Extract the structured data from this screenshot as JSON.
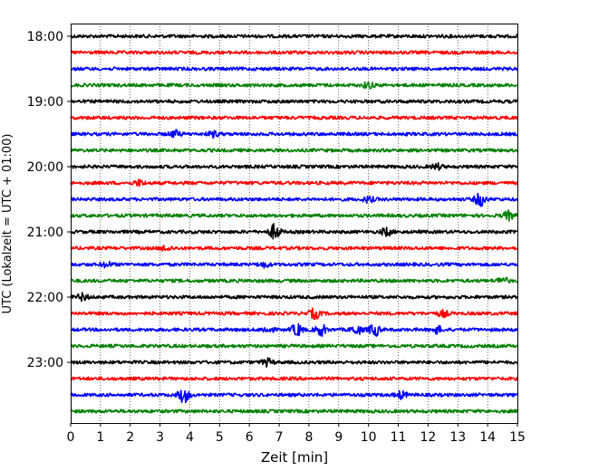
{
  "chart_data": {
    "type": "line",
    "title": "",
    "xlabel": "Zeit  [min]",
    "ylabel": "UTC (Lokalzeit = UTC + 01:00)",
    "xlim": [
      0,
      15
    ],
    "x_ticks": [
      "0",
      "1",
      "2",
      "3",
      "4",
      "5",
      "6",
      "7",
      "8",
      "9",
      "10",
      "11",
      "12",
      "13",
      "14",
      "15"
    ],
    "y_ticks": [
      {
        "label": "18:00",
        "row": 0
      },
      {
        "label": "19:00",
        "row": 4
      },
      {
        "label": "20:00",
        "row": 8
      },
      {
        "label": "21:00",
        "row": 12
      },
      {
        "label": "22:00",
        "row": 16
      },
      {
        "label": "23:00",
        "row": 20
      }
    ],
    "grid": {
      "vertical": true,
      "style": "dotted"
    },
    "colors": [
      "#000000",
      "#ff0000",
      "#0000ff",
      "#008000"
    ],
    "traces": [
      {
        "start": "18:00",
        "color": "#000000",
        "events": []
      },
      {
        "start": "18:15",
        "color": "#ff0000",
        "events": []
      },
      {
        "start": "18:30",
        "color": "#0000ff",
        "events": []
      },
      {
        "start": "18:45",
        "color": "#008000",
        "events": [
          {
            "t": 10.0,
            "amp": 1.6
          }
        ]
      },
      {
        "start": "19:00",
        "color": "#000000",
        "events": []
      },
      {
        "start": "19:15",
        "color": "#ff0000",
        "events": []
      },
      {
        "start": "19:30",
        "color": "#0000ff",
        "events": [
          {
            "t": 3.5,
            "amp": 1.7
          },
          {
            "t": 4.8,
            "amp": 1.4
          }
        ]
      },
      {
        "start": "19:45",
        "color": "#008000",
        "events": []
      },
      {
        "start": "20:00",
        "color": "#000000",
        "events": [
          {
            "t": 12.3,
            "amp": 1.4
          }
        ]
      },
      {
        "start": "20:15",
        "color": "#ff0000",
        "events": [
          {
            "t": 2.3,
            "amp": 1.4
          }
        ]
      },
      {
        "start": "20:30",
        "color": "#0000ff",
        "events": [
          {
            "t": 13.75,
            "amp": 3.5
          },
          {
            "t": 10.0,
            "amp": 1.4
          }
        ]
      },
      {
        "start": "20:45",
        "color": "#008000",
        "events": [
          {
            "t": 14.7,
            "amp": 2.2
          }
        ]
      },
      {
        "start": "21:00",
        "color": "#000000",
        "events": [
          {
            "t": 6.85,
            "amp": 4.0
          },
          {
            "t": 10.6,
            "amp": 2.0
          }
        ]
      },
      {
        "start": "21:15",
        "color": "#ff0000",
        "events": [
          {
            "t": 3.2,
            "amp": 1.4
          }
        ]
      },
      {
        "start": "21:30",
        "color": "#0000ff",
        "events": [
          {
            "t": 1.2,
            "amp": 1.3
          },
          {
            "t": 6.5,
            "amp": 1.3
          }
        ]
      },
      {
        "start": "21:45",
        "color": "#008000",
        "events": [
          {
            "t": 14.5,
            "amp": 1.8
          }
        ]
      },
      {
        "start": "22:00",
        "color": "#000000",
        "events": [
          {
            "t": 0.4,
            "amp": 1.7
          }
        ]
      },
      {
        "start": "22:15",
        "color": "#ff0000",
        "events": [
          {
            "t": 8.2,
            "amp": 2.6
          },
          {
            "t": 12.5,
            "amp": 1.6
          }
        ]
      },
      {
        "start": "22:30",
        "color": "#0000ff",
        "events": [
          {
            "t": 7.6,
            "amp": 3.2
          },
          {
            "t": 8.4,
            "amp": 3.0
          },
          {
            "t": 9.6,
            "amp": 2.4
          },
          {
            "t": 10.2,
            "amp": 3.2
          },
          {
            "t": 6.6,
            "amp": 1.6
          },
          {
            "t": 12.3,
            "amp": 1.8
          }
        ]
      },
      {
        "start": "22:45",
        "color": "#008000",
        "events": []
      },
      {
        "start": "23:00",
        "color": "#000000",
        "events": [
          {
            "t": 6.6,
            "amp": 1.8
          }
        ]
      },
      {
        "start": "23:15",
        "color": "#ff0000",
        "events": []
      },
      {
        "start": "23:30",
        "color": "#0000ff",
        "events": [
          {
            "t": 3.8,
            "amp": 4.0
          },
          {
            "t": 11.1,
            "amp": 1.8
          }
        ]
      },
      {
        "start": "23:45",
        "color": "#008000",
        "events": []
      }
    ]
  }
}
